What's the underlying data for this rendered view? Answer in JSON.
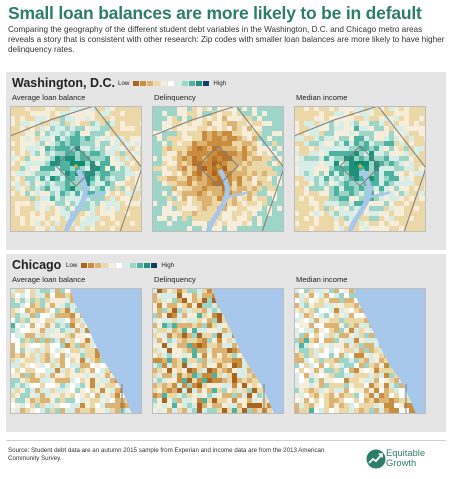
{
  "header": {
    "title": "Small loan balances are more likely to be in default",
    "subtitle": "Comparing the geography of the different student debt variables in the Washington, D.C. and Chicago metro areas reveals a story that is consistent with other research: Zip codes with smaller loan balances are more likely to have higher delinquency rates."
  },
  "legend": {
    "low": "Low",
    "high": "High",
    "colors": [
      "#a9641f",
      "#c88d3e",
      "#ddb373",
      "#ecd7a6",
      "#f6eedb",
      "#ffffff",
      "#d7eee8",
      "#9dd5c8",
      "#4db3a0",
      "#1e917c",
      "#163a6b"
    ]
  },
  "colors": {
    "water": "#a7c8ea",
    "boundary": "#7d7d7d",
    "brand": "#2e7d6b",
    "city_marker": "#c6b23a"
  },
  "regions": [
    {
      "id": "dc",
      "name": "Washington, D.C.",
      "maps": [
        {
          "id": "dc-avg",
          "label": "Average loan balance",
          "palette": "teal"
        },
        {
          "id": "dc-del",
          "label": "Delinquency",
          "palette": "brown"
        },
        {
          "id": "dc-inc",
          "label": "Median income",
          "palette": "teal"
        }
      ]
    },
    {
      "id": "chi",
      "name": "Chicago",
      "maps": [
        {
          "id": "chi-avg",
          "label": "Average loan balance",
          "palette": "tan"
        },
        {
          "id": "chi-del",
          "label": "Delinquency",
          "palette": "mixed"
        },
        {
          "id": "chi-inc",
          "label": "Median income",
          "palette": "tan"
        }
      ]
    }
  ],
  "footer": {
    "source": "Source: Student debt data are an autumn 2015 sample from Experian and income data are from the 2013 American Community Survey.",
    "logo_line1": "Equitable",
    "logo_line2": "Growth",
    "logo_icon": "equitable-growth-logo-icon"
  }
}
